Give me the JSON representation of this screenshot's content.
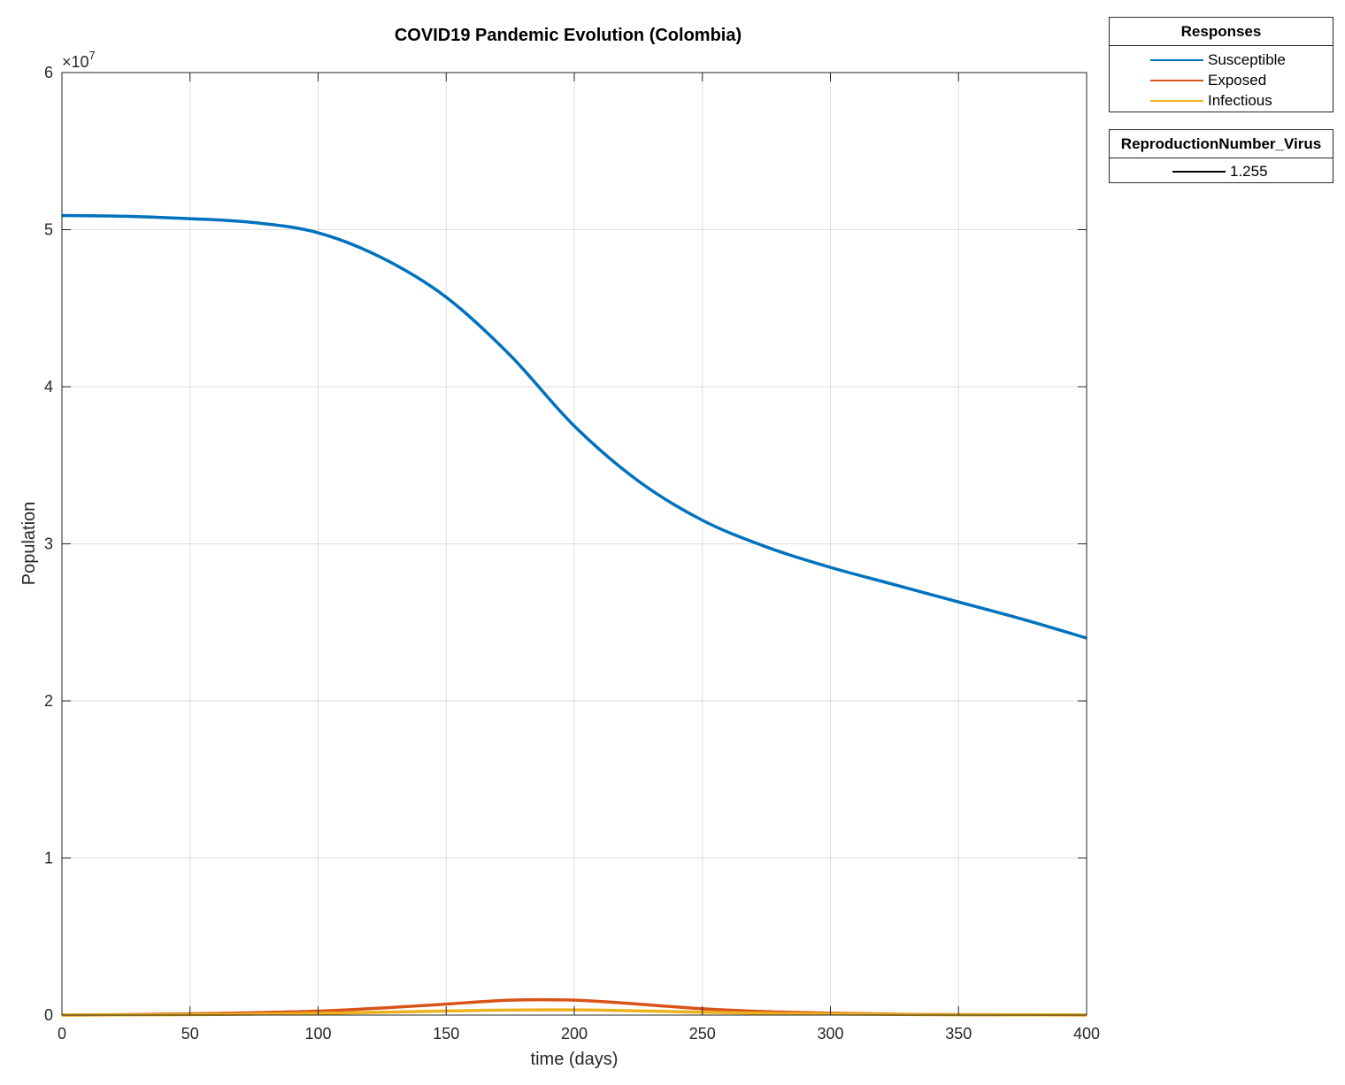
{
  "chart_data": {
    "type": "line",
    "title": "COVID19 Pandemic Evolution (Colombia)",
    "xlabel": "time (days)",
    "ylabel": "Population",
    "xlim": [
      0,
      400
    ],
    "ylim": [
      0,
      60000000
    ],
    "y_exponent_label": "×10",
    "y_exponent": "7",
    "grid": true,
    "xticks": [
      0,
      50,
      100,
      150,
      200,
      250,
      300,
      350,
      400
    ],
    "xtick_labels": [
      "0",
      "50",
      "100",
      "150",
      "200",
      "250",
      "300",
      "350",
      "400"
    ],
    "yticks": [
      0,
      10000000,
      20000000,
      30000000,
      40000000,
      50000000,
      60000000
    ],
    "ytick_labels": [
      "0",
      "1",
      "2",
      "3",
      "4",
      "5",
      "6"
    ],
    "x": [
      0,
      25,
      50,
      75,
      100,
      125,
      150,
      175,
      200,
      225,
      250,
      275,
      300,
      325,
      350,
      375,
      400
    ],
    "series": [
      {
        "name": "Susceptible",
        "color": "#0072BD",
        "values": [
          50900000,
          50850000,
          50700000,
          50450000,
          49800000,
          48200000,
          45700000,
          42000000,
          37500000,
          34000000,
          31500000,
          29800000,
          28500000,
          27400000,
          26300000,
          25200000,
          24000000
        ]
      },
      {
        "name": "Exposed",
        "color": "#D95319",
        "values": [
          0,
          30000,
          80000,
          150000,
          250000,
          450000,
          700000,
          950000,
          950000,
          700000,
          400000,
          220000,
          120000,
          60000,
          30000,
          20000,
          10000
        ]
      },
      {
        "name": "Infectious",
        "color": "#EDB120",
        "values": [
          0,
          15000,
          30000,
          60000,
          110000,
          180000,
          260000,
          320000,
          330000,
          270000,
          180000,
          110000,
          70000,
          40000,
          25000,
          15000,
          10000
        ]
      }
    ],
    "legend": {
      "title": "Responses",
      "placement": "outside-top-right",
      "entries": [
        "Susceptible",
        "Exposed",
        "Infectious"
      ]
    },
    "legend2": {
      "title": "ReproductionNumber_Virus",
      "entries": [
        {
          "label": "1.255",
          "color": "#000000"
        }
      ]
    }
  }
}
